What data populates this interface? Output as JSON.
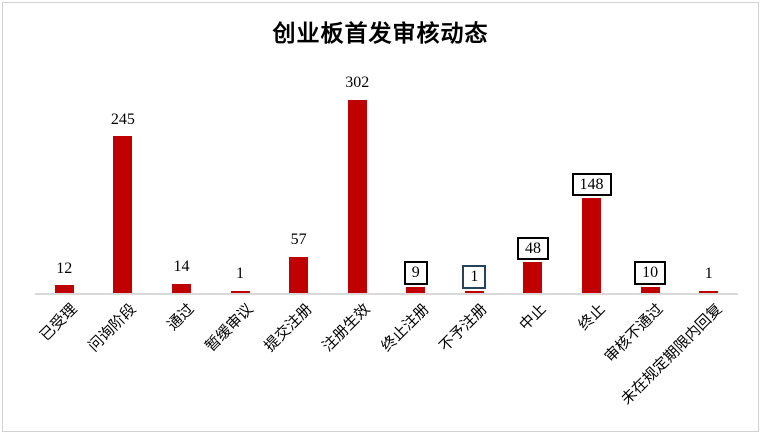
{
  "chart_data": {
    "type": "bar",
    "title": "创业板首发审核动态",
    "categories": [
      "已受理",
      "问询阶段",
      "通过",
      "暂缓审议",
      "提交注册",
      "注册生效",
      "终止注册",
      "不予注册",
      "中止",
      "终止",
      "审核不通过",
      "未在规定期限内回复"
    ],
    "values": [
      12,
      245,
      14,
      1,
      57,
      302,
      9,
      1,
      48,
      148,
      10,
      1
    ],
    "value_labels": [
      "12",
      "245",
      "14",
      "1",
      "57",
      "302",
      "9",
      "1",
      "48",
      "148",
      "10",
      "1"
    ],
    "boxed_labels": [
      false,
      false,
      false,
      false,
      false,
      false,
      true,
      true,
      true,
      true,
      true,
      false
    ],
    "box_border_colors": [
      null,
      null,
      null,
      null,
      null,
      null,
      "#000000",
      "#26435e",
      "#000000",
      "#000000",
      "#000000",
      null
    ],
    "bar_color": "#c00000",
    "axis_line_color": "#d9d9d9",
    "text_color": "#000000",
    "xlabel": "",
    "ylabel": "",
    "ylim": [
      0,
      310
    ],
    "grid": "off",
    "legend": "none"
  }
}
